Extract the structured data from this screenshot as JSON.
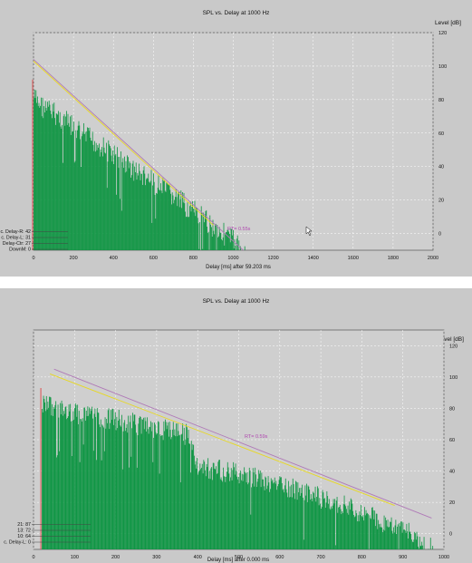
{
  "colors": {
    "panel_bg": "#c9c9c9",
    "plot_bg": "#cfcfcf",
    "bars": "#0a9440",
    "fit_line": "#b07ab8",
    "yellow_line": "#e8d820",
    "red_line": "#e03030",
    "rt_text": "#b04ab0"
  },
  "chart_data": [
    {
      "type": "bar",
      "title": "SPL vs. Delay at 1000 Hz",
      "ylabel": "Level [dB]",
      "xlabel": "Delay [ms] after  59.203 ms",
      "xlim": [
        0,
        2000
      ],
      "ylim": [
        -10,
        120
      ],
      "x_ticks": [
        "0",
        "200",
        "400",
        "600",
        "800",
        "1000",
        "1200",
        "1400",
        "1600",
        "1800",
        "2000"
      ],
      "y_ticks": [
        "0",
        "20",
        "40",
        "60",
        "80",
        "100",
        "120"
      ],
      "grid": true,
      "annotation": "RT=  0.55s",
      "markers": [
        "c. Delay-R: 42",
        "c. Delay-L: 31",
        "Delay-Ctr: 27",
        "DownM: 0"
      ],
      "envelope": [
        [
          0,
          88
        ],
        [
          50,
          82
        ],
        [
          100,
          79
        ],
        [
          200,
          70
        ],
        [
          300,
          62
        ],
        [
          400,
          54
        ],
        [
          500,
          45
        ],
        [
          600,
          37
        ],
        [
          700,
          29
        ],
        [
          800,
          20
        ],
        [
          900,
          11
        ],
        [
          1000,
          3
        ],
        [
          1060,
          -7
        ]
      ],
      "fit_line": [
        [
          0,
          104
        ],
        [
          1050,
          -10
        ]
      ],
      "yellow_line": [
        [
          0,
          103
        ],
        [
          900,
          5
        ]
      ]
    },
    {
      "type": "bar",
      "title": "SPL vs. Delay at 1000 Hz",
      "ylabel": "Level [dB]",
      "xlabel": "Delay [ms] after  0.000 ms",
      "xlim": [
        0,
        1000
      ],
      "ylim": [
        -10,
        130
      ],
      "x_ticks": [
        "0",
        "100",
        "200",
        "300",
        "400",
        "500",
        "600",
        "700",
        "800",
        "900",
        "1000"
      ],
      "y_ticks": [
        "0",
        "20",
        "40",
        "60",
        "80",
        "100",
        "120"
      ],
      "grid": true,
      "annotation": "RT=  0.59s",
      "markers": [
        "21: 87",
        "13: 72",
        "10: 64",
        "c. Delay-L: 0"
      ],
      "envelope": [
        [
          20,
          90
        ],
        [
          60,
          87
        ],
        [
          100,
          84
        ],
        [
          200,
          80
        ],
        [
          300,
          74
        ],
        [
          380,
          70
        ],
        [
          400,
          50
        ],
        [
          500,
          45
        ],
        [
          600,
          38
        ],
        [
          700,
          30
        ],
        [
          800,
          20
        ],
        [
          900,
          9
        ],
        [
          960,
          0
        ],
        [
          980,
          -7
        ]
      ],
      "fit_line": [
        [
          50,
          105
        ],
        [
          970,
          10
        ]
      ],
      "yellow_line": [
        [
          40,
          102
        ],
        [
          880,
          18
        ]
      ]
    }
  ]
}
